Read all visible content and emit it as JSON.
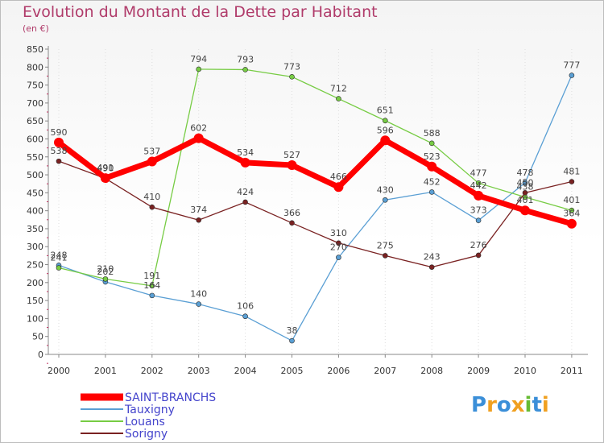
{
  "chart_data": {
    "type": "line",
    "title": "Evolution du Montant de la Dette par Habitant",
    "subtitle": "(en €)",
    "x": [
      "2000",
      "2001",
      "2002",
      "2003",
      "2004",
      "2005",
      "2006",
      "2007",
      "2008",
      "2009",
      "2010",
      "2011"
    ],
    "yticks": [
      0,
      50,
      100,
      150,
      200,
      250,
      300,
      350,
      400,
      450,
      500,
      550,
      600,
      650,
      700,
      750,
      800,
      850
    ],
    "ylim": [
      0,
      850
    ],
    "grid": false,
    "legend": "bottom-left",
    "series": [
      {
        "name": "SAINT-BRANCHS",
        "color": "#ff0000",
        "values": [
          590,
          491,
          537,
          602,
          534,
          527,
          466,
          596,
          523,
          442,
          401,
          364
        ]
      },
      {
        "name": "Tauxigny",
        "color": "#5a9fd4",
        "values": [
          248,
          202,
          164,
          140,
          106,
          38,
          270,
          430,
          452,
          373,
          478,
          777
        ]
      },
      {
        "name": "Louans",
        "color": "#77cc44",
        "values": [
          241,
          210,
          191,
          794,
          793,
          773,
          712,
          651,
          588,
          477,
          438,
          401
        ]
      },
      {
        "name": "Sorigny",
        "color": "#7a2222",
        "values": [
          538,
          490,
          410,
          374,
          424,
          366,
          310,
          275,
          243,
          276,
          450,
          481
        ]
      }
    ]
  },
  "logo": {
    "letters": [
      "P",
      "r",
      "o",
      "x",
      "i",
      "t",
      "i"
    ],
    "colors": [
      "#3b8fd8",
      "#f0a020",
      "#3b8fd8",
      "#f0a020",
      "#66bb33",
      "#3b8fd8",
      "#f0a020"
    ]
  }
}
